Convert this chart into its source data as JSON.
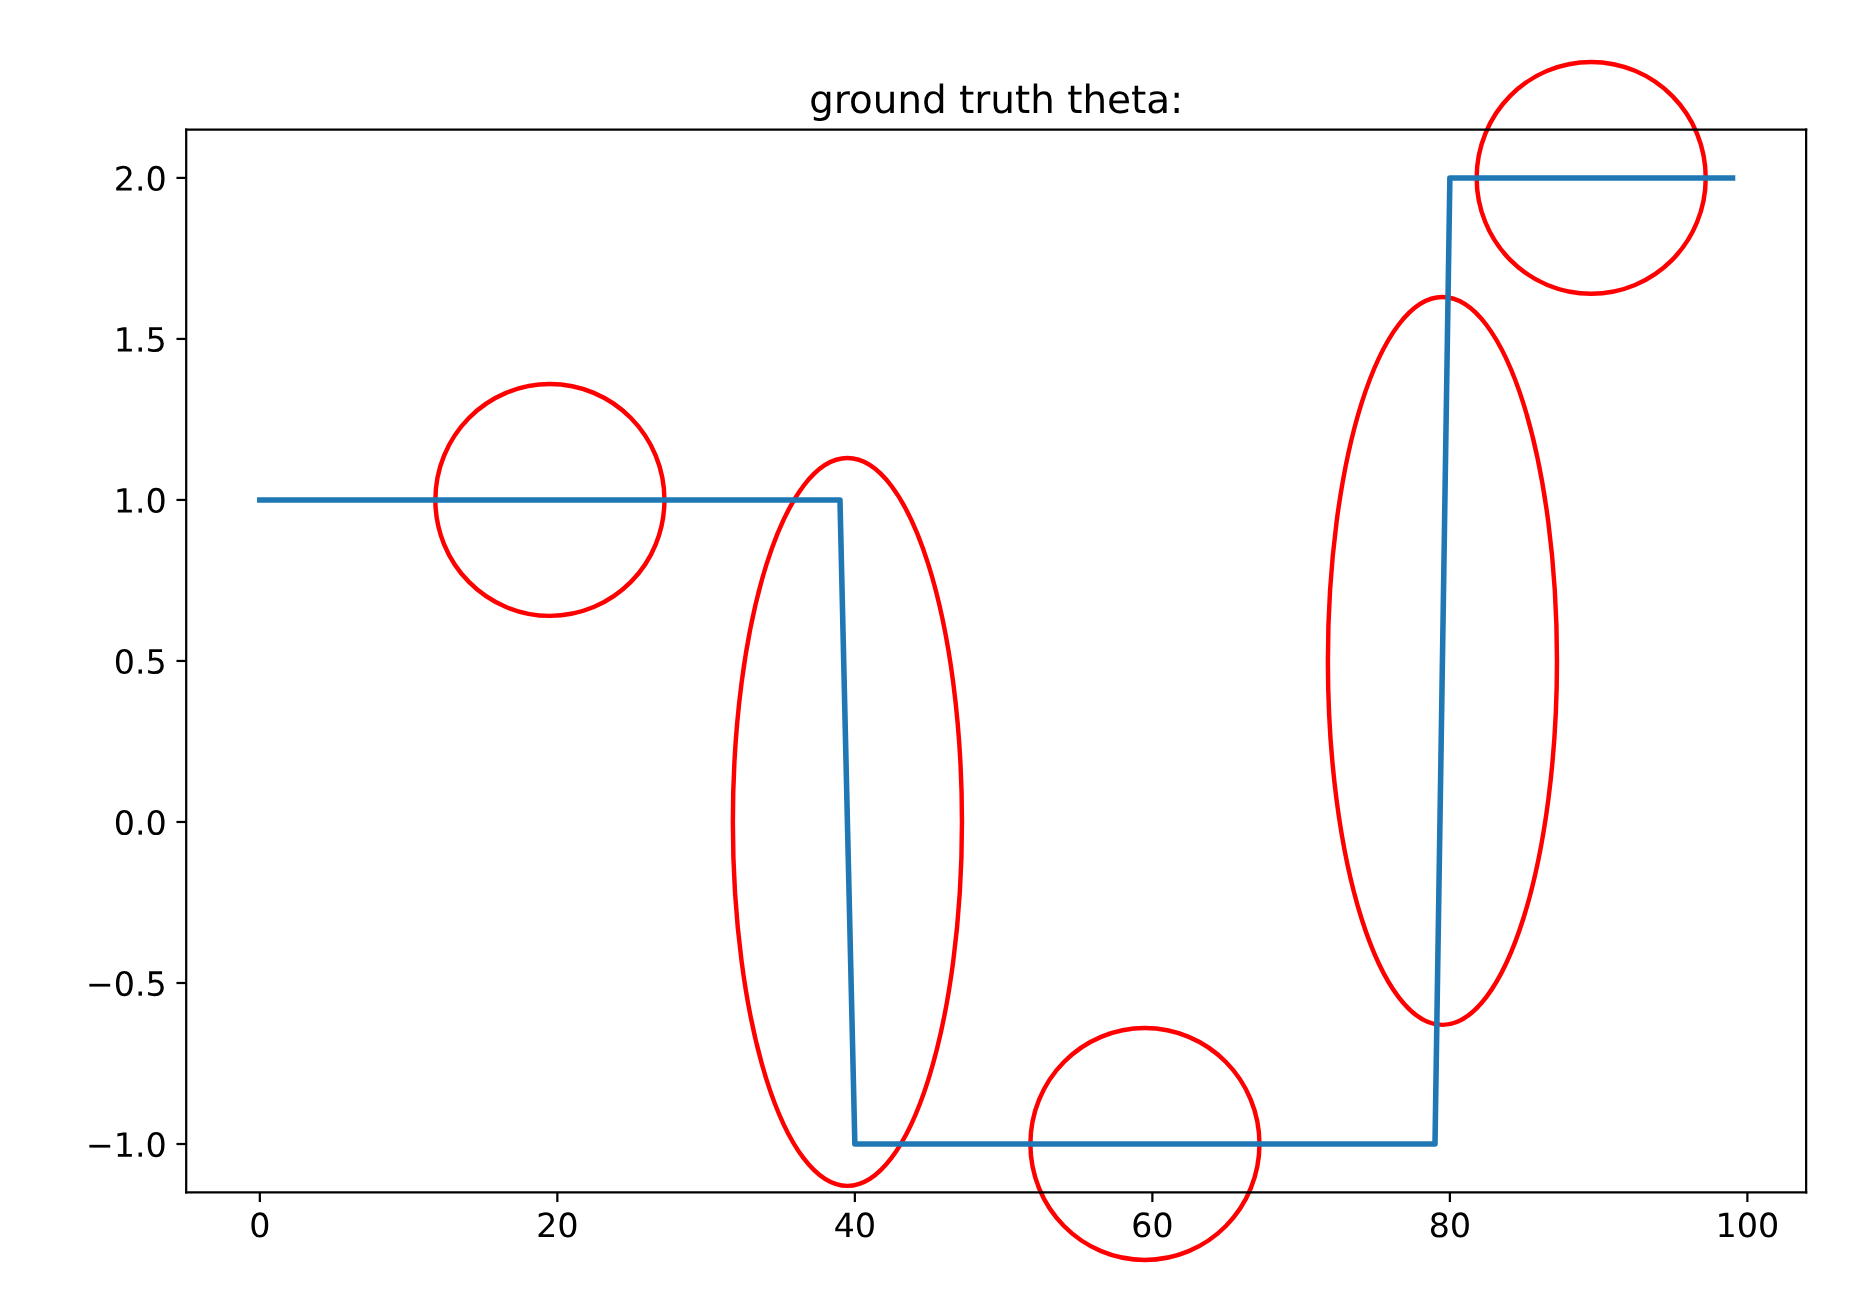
{
  "chart_data": {
    "type": "line",
    "title": "ground truth theta:",
    "x": [
      0,
      39,
      40,
      79,
      80,
      99
    ],
    "series": [
      {
        "color": "#1f77b4",
        "values": [
          1,
          1,
          -1,
          -1,
          2,
          2
        ]
      }
    ],
    "xlim": [
      -4.95,
      103.95
    ],
    "xticks": [
      0,
      20,
      40,
      60,
      80,
      100
    ],
    "ylim": [
      -1.15,
      2.15
    ],
    "yticks": [
      {
        "value": -1.0,
        "label": "−1.0"
      },
      {
        "value": -0.5,
        "label": "−0.5"
      },
      {
        "value": 0.0,
        "label": "0.0"
      },
      {
        "value": 0.5,
        "label": "0.5"
      },
      {
        "value": 1.0,
        "label": "1.0"
      },
      {
        "value": 1.5,
        "label": "1.5"
      },
      {
        "value": 2.0,
        "label": "2.0"
      }
    ],
    "grid": false,
    "legend": false
  }
}
